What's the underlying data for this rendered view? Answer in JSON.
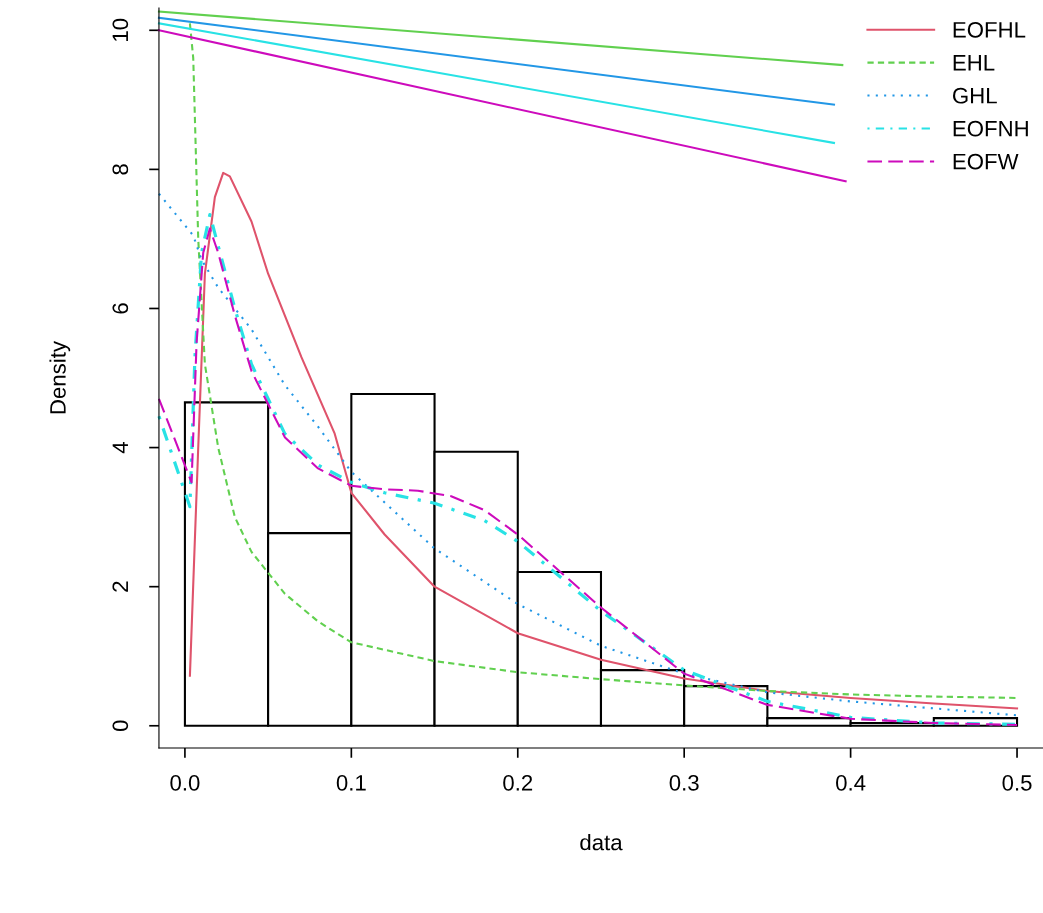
{
  "chart_data": {
    "type": "histogram",
    "xlabel": "data",
    "ylabel": "Density",
    "bins": [
      0,
      0.05,
      0.1,
      0.15,
      0.2,
      0.25,
      0.3,
      0.35,
      0.4,
      0.45,
      0.5
    ],
    "values": [
      4.65,
      2.77,
      4.77,
      3.94,
      2.21,
      0.8,
      0.57,
      0.11,
      0.04,
      0.11
    ],
    "color": "#000000",
    "series": [
      {
        "type": "line",
        "name": "EOFHL",
        "color": "#df536b",
        "line_style": "solid",
        "x": [
          0.003,
          0.008,
          0.012,
          0.018,
          0.023,
          0.027,
          0.04,
          0.05,
          0.07,
          0.09,
          0.1,
          0.12,
          0.15,
          0.2,
          0.25,
          0.3,
          0.35,
          0.4,
          0.45,
          0.5
        ],
        "values": [
          0.72,
          4.0,
          6.5,
          7.6,
          7.95,
          7.9,
          7.25,
          6.5,
          5.3,
          4.2,
          3.35,
          2.75,
          2.0,
          1.33,
          0.95,
          0.68,
          0.5,
          0.4,
          0.32,
          0.25
        ]
      },
      {
        "type": "line",
        "name": "EHL",
        "color": "#61d04f",
        "line_style": "dashed",
        "x": [
          0.003,
          0.005,
          0.008,
          0.012,
          0.02,
          0.03,
          0.04,
          0.06,
          0.08,
          0.1,
          0.15,
          0.2,
          0.25,
          0.3,
          0.35,
          0.4,
          0.45,
          0.5
        ],
        "values": [
          10.1,
          9.6,
          7.0,
          5.2,
          4.0,
          3.0,
          2.5,
          1.9,
          1.5,
          1.2,
          0.93,
          0.77,
          0.67,
          0.58,
          0.5,
          0.45,
          0.42,
          0.4
        ]
      },
      {
        "type": "line",
        "name": "GHL",
        "color": "#2297e6",
        "line_style": "dotted",
        "x": [
          -0.0156,
          0.005,
          0.01,
          0.02,
          0.04,
          0.06,
          0.08,
          0.1,
          0.15,
          0.2,
          0.25,
          0.3,
          0.35,
          0.4,
          0.45,
          0.5
        ],
        "values": [
          7.65,
          7.05,
          6.7,
          6.3,
          5.7,
          4.9,
          4.3,
          3.65,
          2.55,
          1.75,
          1.15,
          0.75,
          0.48,
          0.35,
          0.25,
          0.15
        ]
      },
      {
        "type": "line",
        "name": "EOFNH",
        "color": "#28e2e5",
        "line_style": "dashdot",
        "x": [
          -0.0156,
          0.003,
          0.006,
          0.01,
          0.015,
          0.02,
          0.03,
          0.04,
          0.06,
          0.08,
          0.1,
          0.12,
          0.15,
          0.18,
          0.2,
          0.25,
          0.3,
          0.35,
          0.4,
          0.45,
          0.5
        ],
        "values": [
          4.45,
          3.15,
          5.3,
          6.8,
          7.35,
          6.9,
          6.0,
          5.2,
          4.2,
          3.75,
          3.5,
          3.35,
          3.2,
          2.95,
          2.65,
          1.65,
          0.8,
          0.35,
          0.12,
          0.04,
          0.02
        ]
      },
      {
        "type": "line",
        "name": "EOFW",
        "color": "#cd0bbc",
        "line_style": "longdash",
        "x": [
          -0.0156,
          0.004,
          0.007,
          0.011,
          0.015,
          0.02,
          0.03,
          0.04,
          0.06,
          0.08,
          0.1,
          0.12,
          0.14,
          0.16,
          0.18,
          0.2,
          0.25,
          0.3,
          0.35,
          0.4,
          0.45,
          0.5
        ],
        "values": [
          4.7,
          3.5,
          5.5,
          6.8,
          7.15,
          6.8,
          5.9,
          5.1,
          4.15,
          3.7,
          3.45,
          3.4,
          3.38,
          3.3,
          3.1,
          2.75,
          1.7,
          0.75,
          0.3,
          0.1,
          0.04,
          0.01
        ]
      },
      {
        "type": "line",
        "color": "#61d04f",
        "line_style": "solid",
        "x": [
          -0.0156,
          0.395
        ],
        "values": [
          10.27,
          9.5
        ]
      },
      {
        "type": "line",
        "color": "#2297e6",
        "line_style": "solid",
        "x": [
          -0.0156,
          0.39
        ],
        "values": [
          10.18,
          8.93
        ]
      },
      {
        "type": "line",
        "color": "#28e2e5",
        "line_style": "solid",
        "x": [
          -0.0156,
          0.39
        ],
        "values": [
          10.1,
          8.38
        ]
      },
      {
        "type": "line",
        "color": "#cd0bbc",
        "line_style": "solid",
        "x": [
          -0.0156,
          0.397
        ],
        "values": [
          10.0,
          7.83
        ]
      }
    ],
    "xlim": [
      -0.0156,
      0.5156
    ],
    "ylim": [
      -0.32,
      10.32
    ],
    "xticks": [
      {
        "value": 0,
        "label": "0.0"
      },
      0.1,
      0.2,
      0.3,
      0.4,
      0.5
    ],
    "yticks": [
      0,
      2,
      4,
      6,
      8,
      10
    ],
    "legend": "top right"
  }
}
